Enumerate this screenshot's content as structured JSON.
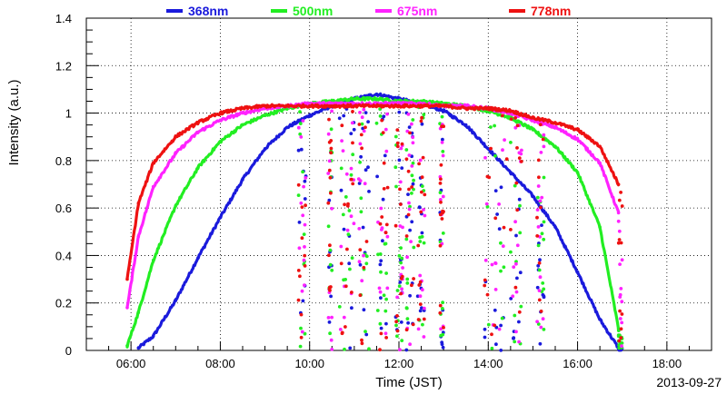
{
  "chart_data": {
    "type": "scatter",
    "xlabel": "Time (JST)",
    "ylabel": "Intensity (a.u.)",
    "date_label": "2013-09-27",
    "xlim": [
      "05:00",
      "19:00"
    ],
    "ylim": [
      0,
      1.4
    ],
    "x_ticks": [
      "06:00",
      "08:00",
      "10:00",
      "12:00",
      "14:00",
      "16:00",
      "18:00"
    ],
    "y_ticks": [
      "0",
      "0.2",
      "0.4",
      "0.6",
      "0.8",
      "1",
      "1.2",
      "1.4"
    ],
    "grid": true,
    "legend_position": "top",
    "series": [
      {
        "name": "368nm",
        "color": "#1a1adc",
        "x": [
          "06:10",
          "06:30",
          "07:00",
          "07:30",
          "08:00",
          "08:30",
          "09:00",
          "09:30",
          "10:00",
          "10:30",
          "11:00",
          "11:30",
          "12:00",
          "12:30",
          "13:00",
          "13:30",
          "14:00",
          "14:30",
          "15:00",
          "15:30",
          "16:00",
          "16:30",
          "16:55"
        ],
        "values": [
          0.01,
          0.06,
          0.21,
          0.39,
          0.56,
          0.72,
          0.85,
          0.94,
          0.99,
          1.03,
          1.06,
          1.08,
          1.06,
          1.04,
          1.01,
          0.95,
          0.85,
          0.75,
          0.65,
          0.52,
          0.33,
          0.13,
          0.01
        ]
      },
      {
        "name": "500nm",
        "color": "#22ee22",
        "x": [
          "05:55",
          "06:10",
          "06:30",
          "07:00",
          "07:30",
          "08:00",
          "08:30",
          "09:00",
          "09:30",
          "10:00",
          "10:30",
          "11:00",
          "11:30",
          "12:00",
          "12:30",
          "13:00",
          "13:30",
          "14:00",
          "14:30",
          "15:00",
          "15:30",
          "16:00",
          "16:30",
          "16:55"
        ],
        "values": [
          0.02,
          0.16,
          0.38,
          0.61,
          0.77,
          0.88,
          0.95,
          0.99,
          1.02,
          1.04,
          1.05,
          1.06,
          1.06,
          1.05,
          1.05,
          1.04,
          1.03,
          1.01,
          0.98,
          0.93,
          0.86,
          0.75,
          0.52,
          0.09
        ]
      },
      {
        "name": "675nm",
        "color": "#ff22ff",
        "x": [
          "05:55",
          "06:10",
          "06:30",
          "07:00",
          "07:30",
          "08:00",
          "08:30",
          "09:00",
          "09:30",
          "10:00",
          "10:30",
          "11:00",
          "11:30",
          "12:00",
          "12:30",
          "13:00",
          "13:30",
          "14:00",
          "14:30",
          "15:00",
          "15:30",
          "16:00",
          "16:30",
          "16:55"
        ],
        "values": [
          0.18,
          0.48,
          0.69,
          0.83,
          0.92,
          0.97,
          1.0,
          1.02,
          1.03,
          1.04,
          1.04,
          1.04,
          1.04,
          1.04,
          1.04,
          1.03,
          1.03,
          1.02,
          1.0,
          0.97,
          0.94,
          0.89,
          0.79,
          0.58
        ]
      },
      {
        "name": "778nm",
        "color": "#ee1111",
        "x": [
          "05:55",
          "06:10",
          "06:30",
          "07:00",
          "07:30",
          "08:00",
          "08:30",
          "09:00",
          "09:30",
          "10:00",
          "10:30",
          "11:00",
          "11:30",
          "12:00",
          "12:30",
          "13:00",
          "13:30",
          "14:00",
          "14:30",
          "15:00",
          "15:30",
          "16:00",
          "16:30",
          "16:55"
        ],
        "values": [
          0.3,
          0.62,
          0.79,
          0.9,
          0.96,
          1.0,
          1.02,
          1.03,
          1.03,
          1.03,
          1.03,
          1.03,
          1.03,
          1.03,
          1.03,
          1.03,
          1.02,
          1.02,
          1.01,
          0.98,
          0.96,
          0.93,
          0.86,
          0.7
        ]
      }
    ],
    "cloud_scatter_intervals": [
      [
        "09:45",
        "09:55"
      ],
      [
        "10:25",
        "10:30"
      ],
      [
        "10:40",
        "11:00"
      ],
      [
        "11:05",
        "11:20"
      ],
      [
        "11:30",
        "11:45"
      ],
      [
        "11:55",
        "12:05"
      ],
      [
        "12:10",
        "12:20"
      ],
      [
        "12:25",
        "12:35"
      ],
      [
        "12:55",
        "13:00"
      ],
      [
        "13:55",
        "14:25"
      ],
      [
        "14:30",
        "14:45"
      ],
      [
        "15:05",
        "15:15"
      ],
      [
        "16:55",
        "17:00"
      ]
    ]
  }
}
